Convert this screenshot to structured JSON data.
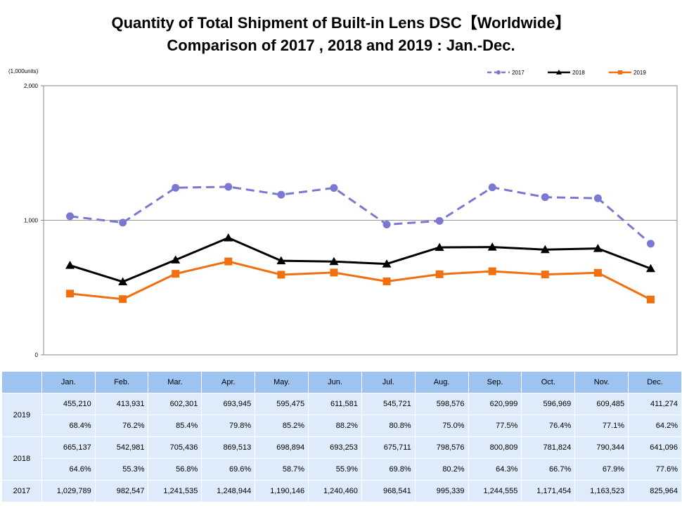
{
  "header": {
    "title_line1": "Quantity of Total Shipment of Built-in Lens DSC【Worldwide】",
    "title_line2": "Comparison of 2017 , 2018 and 2019 : Jan.-Dec."
  },
  "chart_data": {
    "type": "line",
    "ylabel": "(1,000units)",
    "ylim": [
      0,
      2000
    ],
    "yticks": [
      "0",
      "1,000",
      "2,000"
    ],
    "ytick_values": [
      0,
      1000,
      2000
    ],
    "grid": "major horizontal at 1,000",
    "legend_position": "top-right",
    "categories": [
      "Jan.",
      "Feb.",
      "Mar.",
      "Apr.",
      "May.",
      "Jun.",
      "Jul.",
      "Aug.",
      "Sep.",
      "Oct.",
      "Nov.",
      "Dec."
    ],
    "series": [
      {
        "name": "2017",
        "color": "#7b78d1",
        "style": "dashed",
        "marker": "circle",
        "values": [
          1029.789,
          982.547,
          1241.535,
          1248.944,
          1190.146,
          1240.46,
          968.541,
          995.339,
          1244.555,
          1171.454,
          1163.523,
          825.964
        ]
      },
      {
        "name": "2018",
        "color": "#000000",
        "style": "solid",
        "marker": "triangle",
        "values": [
          665.137,
          542.981,
          705.436,
          869.513,
          698.894,
          693.253,
          675.711,
          798.576,
          800.809,
          781.824,
          790.344,
          641.096
        ]
      },
      {
        "name": "2019",
        "color": "#f26f0f",
        "style": "solid",
        "marker": "square",
        "values": [
          455.21,
          413.931,
          602.301,
          693.945,
          595.475,
          611.581,
          545.721,
          598.576,
          620.999,
          596.969,
          609.485,
          411.274
        ]
      }
    ]
  },
  "table": {
    "months": [
      "Jan.",
      "Feb.",
      "Mar.",
      "Apr.",
      "May.",
      "Jun.",
      "Jul.",
      "Aug.",
      "Sep.",
      "Oct.",
      "Nov.",
      "Dec."
    ],
    "rows": [
      {
        "year": "2019",
        "values": [
          "455,210",
          "413,931",
          "602,301",
          "693,945",
          "595,475",
          "611,581",
          "545,721",
          "598,576",
          "620,999",
          "596,969",
          "609,485",
          "411,274"
        ],
        "pct": [
          "68.4%",
          "76.2%",
          "85.4%",
          "79.8%",
          "85.2%",
          "88.2%",
          "80.8%",
          "75.0%",
          "77.5%",
          "76.4%",
          "77.1%",
          "64.2%"
        ]
      },
      {
        "year": "2018",
        "values": [
          "665,137",
          "542,981",
          "705,436",
          "869,513",
          "698,894",
          "693,253",
          "675,711",
          "798,576",
          "800,809",
          "781,824",
          "790,344",
          "641,096"
        ],
        "pct": [
          "64.6%",
          "55.3%",
          "56.8%",
          "69.6%",
          "58.7%",
          "55.9%",
          "69.8%",
          "80.2%",
          "64.3%",
          "66.7%",
          "67.9%",
          "77.6%"
        ]
      },
      {
        "year": "2017",
        "values": [
          "1,029,789",
          "982,547",
          "1,241,535",
          "1,248,944",
          "1,190,146",
          "1,240,460",
          "968,541",
          "995,339",
          "1,244,555",
          "1,171,454",
          "1,163,523",
          "825,964"
        ]
      }
    ]
  }
}
